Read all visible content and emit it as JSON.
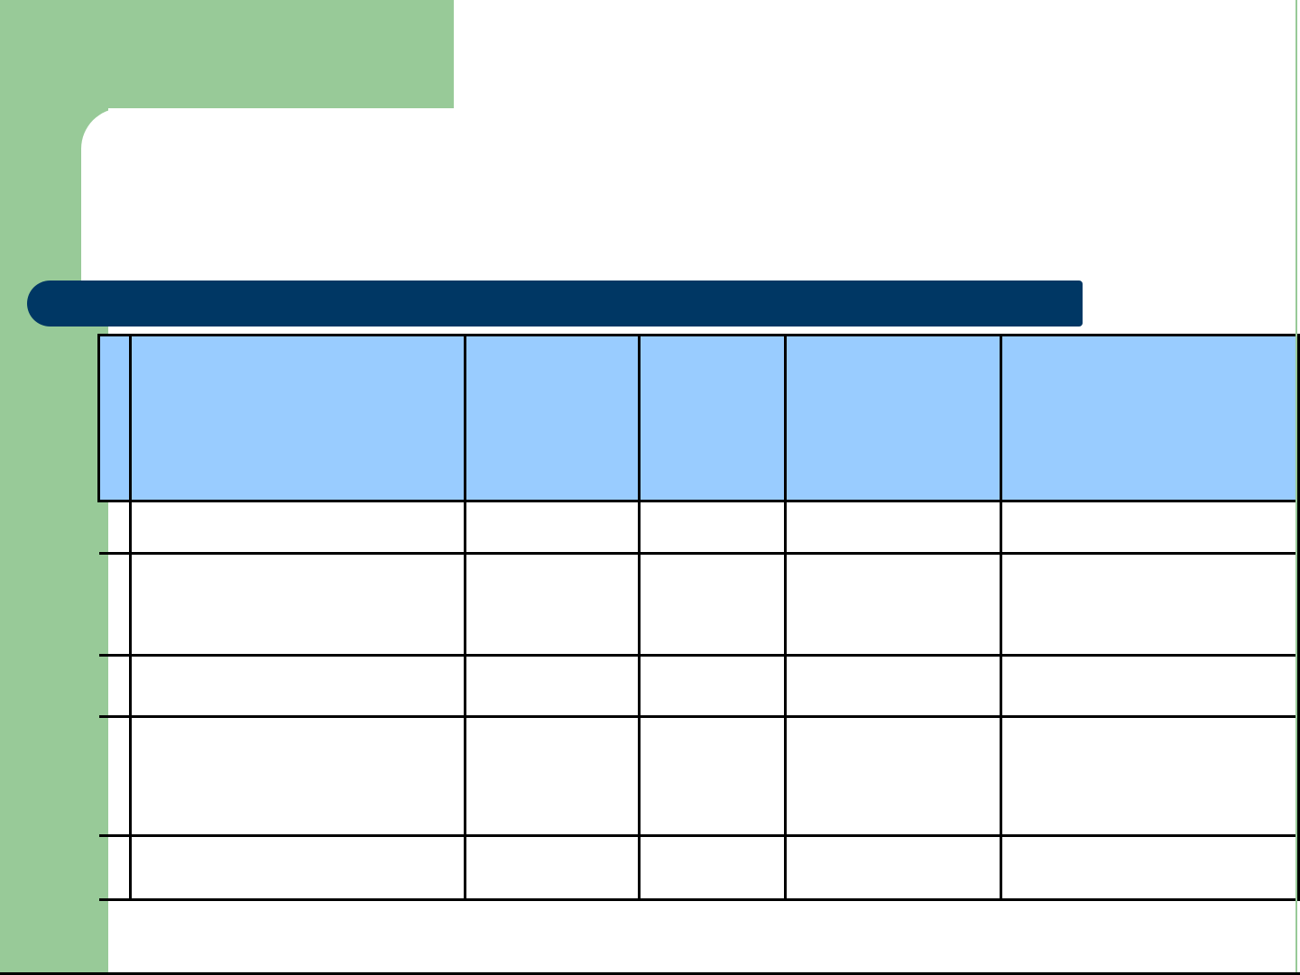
{
  "slide": {
    "type": "presentation-slide",
    "title_text": "",
    "colors": {
      "background": "#ffffff",
      "accent_green": "#98CA98",
      "accent_navy": "#003764",
      "table_header_blue": "#99CCFF",
      "table_border_black": "#000000"
    }
  },
  "table": {
    "column_count": 6,
    "header_row_count": 1,
    "body_row_count": 5,
    "header_cells": [
      "",
      "",
      "",
      "",
      "",
      ""
    ],
    "rows": [
      [
        "",
        "",
        "",
        "",
        "",
        ""
      ],
      [
        "",
        "",
        "",
        "",
        "",
        ""
      ],
      [
        "",
        "",
        "",
        "",
        "",
        ""
      ],
      [
        "",
        "",
        "",
        "",
        "",
        ""
      ],
      [
        "",
        "",
        "",
        "",
        "",
        ""
      ]
    ]
  }
}
